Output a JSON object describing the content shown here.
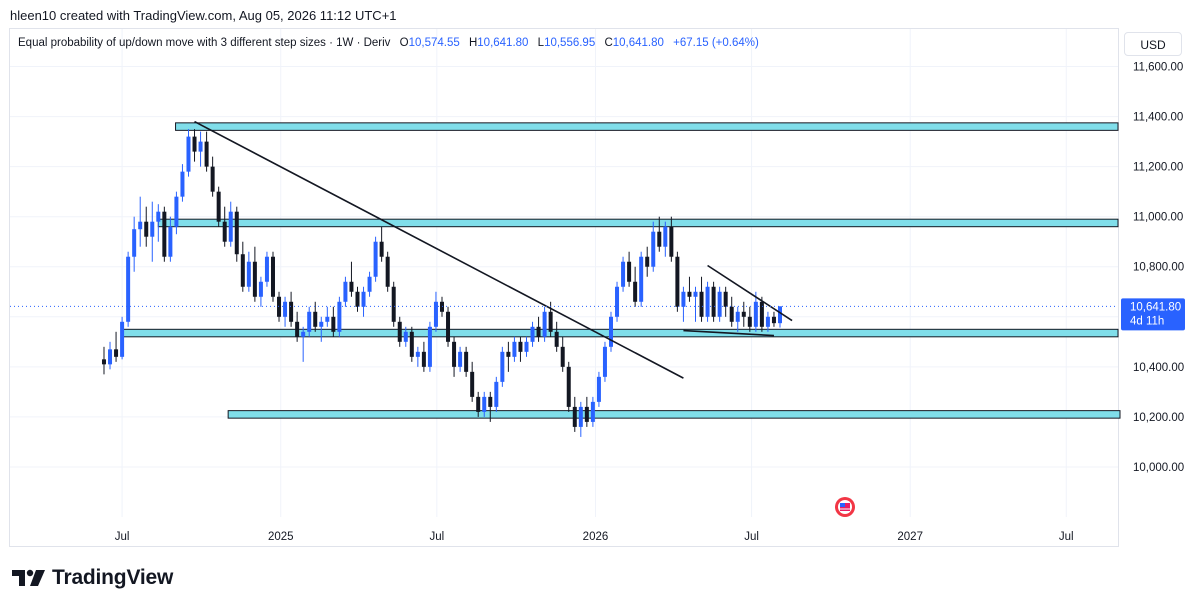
{
  "header": {
    "text": "hleen10 created with TradingView.com, Aug 05, 2026 11:12 UTC+1"
  },
  "legend": {
    "title": "Equal probability of up/down move with 3 different step sizes · 1W · Deriv",
    "open_label": "O",
    "open": "10,574.55",
    "high_label": "H",
    "high": "10,641.80",
    "low_label": "L",
    "low": "10,556.95",
    "close_label": "C",
    "close": "10,641.80",
    "change": "+67.15 (+0.64%)"
  },
  "currency": "USD",
  "price_badge": {
    "price": "10,641.80",
    "countdown": "4d 11h"
  },
  "brand": {
    "name": "TradingView",
    "logo_icon": "tradingview-logo-icon"
  },
  "colors": {
    "up": "#2962ff",
    "down": "#131722",
    "zone_fill": "#80deea",
    "accent": "#2962ff"
  },
  "chart_data": {
    "type": "candlestick",
    "title": "Equal probability of up/down move with 3 different step sizes",
    "interval": "1W",
    "ylim": [
      9800,
      11750
    ],
    "y_ticks": [
      "11,600.00",
      "11,400.00",
      "11,200.00",
      "11,000.00",
      "10,800.00",
      "10,400.00",
      "10,200.00",
      "10,000.00"
    ],
    "y_tick_values": [
      11600,
      11400,
      11200,
      11000,
      10800,
      10400,
      10200,
      10000
    ],
    "x_tick_labels": [
      "Jul",
      "2025",
      "Jul",
      "2026",
      "Jul",
      "2027",
      "Jul"
    ],
    "x_tick_dates": [
      "2024-07-01",
      "2025-01-01",
      "2025-07-01",
      "2026-01-01",
      "2026-07-01",
      "2027-01-01",
      "2027-07-01"
    ],
    "x_range": [
      "2024-02-22",
      "2027-08-30"
    ],
    "last_price": 10641.8,
    "candles": [
      {
        "t": "2024-06-10",
        "o": 10430,
        "h": 10480,
        "l": 10370,
        "c": 10410
      },
      {
        "t": "2024-06-17",
        "o": 10410,
        "h": 10500,
        "l": 10390,
        "c": 10470
      },
      {
        "t": "2024-06-24",
        "o": 10470,
        "h": 10540,
        "l": 10420,
        "c": 10440
      },
      {
        "t": "2024-07-01",
        "o": 10440,
        "h": 10600,
        "l": 10430,
        "c": 10580
      },
      {
        "t": "2024-07-08",
        "o": 10580,
        "h": 10860,
        "l": 10560,
        "c": 10840
      },
      {
        "t": "2024-07-15",
        "o": 10840,
        "h": 11000,
        "l": 10780,
        "c": 10950
      },
      {
        "t": "2024-07-22",
        "o": 10950,
        "h": 11080,
        "l": 10880,
        "c": 10980
      },
      {
        "t": "2024-07-29",
        "o": 10980,
        "h": 11040,
        "l": 10880,
        "c": 10920
      },
      {
        "t": "2024-08-05",
        "o": 10920,
        "h": 11060,
        "l": 10820,
        "c": 10980
      },
      {
        "t": "2024-08-12",
        "o": 10980,
        "h": 11050,
        "l": 10900,
        "c": 11020
      },
      {
        "t": "2024-08-19",
        "o": 11020,
        "h": 11040,
        "l": 10820,
        "c": 10840
      },
      {
        "t": "2024-08-26",
        "o": 10840,
        "h": 11000,
        "l": 10820,
        "c": 10960
      },
      {
        "t": "2024-09-02",
        "o": 10960,
        "h": 11100,
        "l": 10930,
        "c": 11080
      },
      {
        "t": "2024-09-09",
        "o": 11080,
        "h": 11210,
        "l": 11060,
        "c": 11180
      },
      {
        "t": "2024-09-16",
        "o": 11180,
        "h": 11350,
        "l": 11160,
        "c": 11320
      },
      {
        "t": "2024-09-23",
        "o": 11320,
        "h": 11350,
        "l": 11220,
        "c": 11260
      },
      {
        "t": "2024-09-30",
        "o": 11260,
        "h": 11340,
        "l": 11200,
        "c": 11300
      },
      {
        "t": "2024-10-07",
        "o": 11300,
        "h": 11340,
        "l": 11180,
        "c": 11200
      },
      {
        "t": "2024-10-14",
        "o": 11200,
        "h": 11240,
        "l": 11080,
        "c": 11100
      },
      {
        "t": "2024-10-21",
        "o": 11100,
        "h": 11120,
        "l": 10960,
        "c": 10980
      },
      {
        "t": "2024-10-28",
        "o": 10980,
        "h": 11040,
        "l": 10880,
        "c": 10900
      },
      {
        "t": "2024-11-04",
        "o": 10900,
        "h": 11060,
        "l": 10880,
        "c": 11020
      },
      {
        "t": "2024-11-11",
        "o": 11020,
        "h": 11040,
        "l": 10820,
        "c": 10850
      },
      {
        "t": "2024-11-18",
        "o": 10850,
        "h": 10900,
        "l": 10700,
        "c": 10720
      },
      {
        "t": "2024-11-25",
        "o": 10720,
        "h": 10860,
        "l": 10700,
        "c": 10820
      },
      {
        "t": "2024-12-02",
        "o": 10820,
        "h": 10880,
        "l": 10660,
        "c": 10680
      },
      {
        "t": "2024-12-09",
        "o": 10680,
        "h": 10760,
        "l": 10640,
        "c": 10740
      },
      {
        "t": "2024-12-16",
        "o": 10740,
        "h": 10860,
        "l": 10720,
        "c": 10840
      },
      {
        "t": "2024-12-23",
        "o": 10840,
        "h": 10860,
        "l": 10660,
        "c": 10680
      },
      {
        "t": "2024-12-30",
        "o": 10680,
        "h": 10700,
        "l": 10580,
        "c": 10600
      },
      {
        "t": "2025-01-06",
        "o": 10600,
        "h": 10680,
        "l": 10560,
        "c": 10660
      },
      {
        "t": "2025-01-13",
        "o": 10660,
        "h": 10700,
        "l": 10560,
        "c": 10580
      },
      {
        "t": "2025-01-20",
        "o": 10580,
        "h": 10620,
        "l": 10500,
        "c": 10520
      },
      {
        "t": "2025-01-27",
        "o": 10520,
        "h": 10560,
        "l": 10420,
        "c": 10540
      },
      {
        "t": "2025-02-03",
        "o": 10540,
        "h": 10640,
        "l": 10520,
        "c": 10620
      },
      {
        "t": "2025-02-10",
        "o": 10620,
        "h": 10660,
        "l": 10540,
        "c": 10560
      },
      {
        "t": "2025-02-17",
        "o": 10560,
        "h": 10600,
        "l": 10500,
        "c": 10580
      },
      {
        "t": "2025-02-24",
        "o": 10580,
        "h": 10640,
        "l": 10560,
        "c": 10600
      },
      {
        "t": "2025-03-03",
        "o": 10600,
        "h": 10640,
        "l": 10520,
        "c": 10540
      },
      {
        "t": "2025-03-10",
        "o": 10540,
        "h": 10680,
        "l": 10520,
        "c": 10660
      },
      {
        "t": "2025-03-17",
        "o": 10660,
        "h": 10760,
        "l": 10640,
        "c": 10740
      },
      {
        "t": "2025-03-24",
        "o": 10740,
        "h": 10820,
        "l": 10680,
        "c": 10700
      },
      {
        "t": "2025-03-31",
        "o": 10700,
        "h": 10720,
        "l": 10620,
        "c": 10640
      },
      {
        "t": "2025-04-07",
        "o": 10640,
        "h": 10720,
        "l": 10600,
        "c": 10700
      },
      {
        "t": "2025-04-14",
        "o": 10700,
        "h": 10780,
        "l": 10680,
        "c": 10760
      },
      {
        "t": "2025-04-21",
        "o": 10760,
        "h": 10920,
        "l": 10740,
        "c": 10900
      },
      {
        "t": "2025-04-28",
        "o": 10900,
        "h": 10960,
        "l": 10820,
        "c": 10840
      },
      {
        "t": "2025-05-05",
        "o": 10840,
        "h": 10860,
        "l": 10700,
        "c": 10720
      },
      {
        "t": "2025-05-12",
        "o": 10720,
        "h": 10740,
        "l": 10560,
        "c": 10580
      },
      {
        "t": "2025-05-19",
        "o": 10580,
        "h": 10600,
        "l": 10480,
        "c": 10500
      },
      {
        "t": "2025-05-26",
        "o": 10500,
        "h": 10560,
        "l": 10480,
        "c": 10540
      },
      {
        "t": "2025-06-02",
        "o": 10540,
        "h": 10560,
        "l": 10420,
        "c": 10440
      },
      {
        "t": "2025-06-09",
        "o": 10440,
        "h": 10480,
        "l": 10400,
        "c": 10460
      },
      {
        "t": "2025-06-16",
        "o": 10460,
        "h": 10500,
        "l": 10380,
        "c": 10400
      },
      {
        "t": "2025-06-23",
        "o": 10400,
        "h": 10580,
        "l": 10380,
        "c": 10560
      },
      {
        "t": "2025-06-30",
        "o": 10560,
        "h": 10700,
        "l": 10540,
        "c": 10660
      },
      {
        "t": "2025-07-07",
        "o": 10660,
        "h": 10680,
        "l": 10600,
        "c": 10620
      },
      {
        "t": "2025-07-14",
        "o": 10620,
        "h": 10640,
        "l": 10480,
        "c": 10500
      },
      {
        "t": "2025-07-21",
        "o": 10500,
        "h": 10520,
        "l": 10360,
        "c": 10400
      },
      {
        "t": "2025-07-28",
        "o": 10400,
        "h": 10480,
        "l": 10380,
        "c": 10460
      },
      {
        "t": "2025-08-04",
        "o": 10460,
        "h": 10480,
        "l": 10360,
        "c": 10380
      },
      {
        "t": "2025-08-11",
        "o": 10380,
        "h": 10420,
        "l": 10260,
        "c": 10280
      },
      {
        "t": "2025-08-18",
        "o": 10280,
        "h": 10300,
        "l": 10200,
        "c": 10220
      },
      {
        "t": "2025-08-25",
        "o": 10220,
        "h": 10300,
        "l": 10200,
        "c": 10280
      },
      {
        "t": "2025-09-01",
        "o": 10280,
        "h": 10300,
        "l": 10180,
        "c": 10240
      },
      {
        "t": "2025-09-08",
        "o": 10240,
        "h": 10360,
        "l": 10220,
        "c": 10340
      },
      {
        "t": "2025-09-15",
        "o": 10340,
        "h": 10480,
        "l": 10320,
        "c": 10460
      },
      {
        "t": "2025-09-22",
        "o": 10460,
        "h": 10500,
        "l": 10380,
        "c": 10440
      },
      {
        "t": "2025-09-29",
        "o": 10440,
        "h": 10520,
        "l": 10420,
        "c": 10500
      },
      {
        "t": "2025-10-06",
        "o": 10500,
        "h": 10520,
        "l": 10420,
        "c": 10460
      },
      {
        "t": "2025-10-13",
        "o": 10460,
        "h": 10520,
        "l": 10440,
        "c": 10500
      },
      {
        "t": "2025-10-20",
        "o": 10500,
        "h": 10580,
        "l": 10480,
        "c": 10560
      },
      {
        "t": "2025-10-27",
        "o": 10560,
        "h": 10600,
        "l": 10500,
        "c": 10520
      },
      {
        "t": "2025-11-03",
        "o": 10520,
        "h": 10640,
        "l": 10500,
        "c": 10620
      },
      {
        "t": "2025-11-10",
        "o": 10620,
        "h": 10660,
        "l": 10520,
        "c": 10540
      },
      {
        "t": "2025-11-17",
        "o": 10540,
        "h": 10580,
        "l": 10460,
        "c": 10480
      },
      {
        "t": "2025-11-24",
        "o": 10480,
        "h": 10520,
        "l": 10380,
        "c": 10400
      },
      {
        "t": "2025-12-01",
        "o": 10400,
        "h": 10420,
        "l": 10220,
        "c": 10240
      },
      {
        "t": "2025-12-08",
        "o": 10240,
        "h": 10280,
        "l": 10140,
        "c": 10160
      },
      {
        "t": "2025-12-15",
        "o": 10160,
        "h": 10260,
        "l": 10120,
        "c": 10240
      },
      {
        "t": "2025-12-22",
        "o": 10240,
        "h": 10280,
        "l": 10160,
        "c": 10180
      },
      {
        "t": "2025-12-29",
        "o": 10180,
        "h": 10280,
        "l": 10160,
        "c": 10260
      },
      {
        "t": "2026-01-05",
        "o": 10260,
        "h": 10380,
        "l": 10240,
        "c": 10360
      },
      {
        "t": "2026-01-12",
        "o": 10360,
        "h": 10500,
        "l": 10340,
        "c": 10480
      },
      {
        "t": "2026-01-19",
        "o": 10480,
        "h": 10620,
        "l": 10460,
        "c": 10600
      },
      {
        "t": "2026-01-26",
        "o": 10600,
        "h": 10740,
        "l": 10580,
        "c": 10720
      },
      {
        "t": "2026-02-02",
        "o": 10720,
        "h": 10840,
        "l": 10700,
        "c": 10820
      },
      {
        "t": "2026-02-09",
        "o": 10820,
        "h": 10860,
        "l": 10720,
        "c": 10740
      },
      {
        "t": "2026-02-16",
        "o": 10740,
        "h": 10800,
        "l": 10640,
        "c": 10660
      },
      {
        "t": "2026-02-23",
        "o": 10660,
        "h": 10860,
        "l": 10640,
        "c": 10840
      },
      {
        "t": "2026-03-02",
        "o": 10840,
        "h": 10880,
        "l": 10760,
        "c": 10800
      },
      {
        "t": "2026-03-09",
        "o": 10800,
        "h": 10980,
        "l": 10780,
        "c": 10940
      },
      {
        "t": "2026-03-16",
        "o": 10940,
        "h": 11000,
        "l": 10860,
        "c": 10880
      },
      {
        "t": "2026-03-23",
        "o": 10880,
        "h": 10980,
        "l": 10840,
        "c": 10960
      },
      {
        "t": "2026-03-30",
        "o": 10960,
        "h": 11000,
        "l": 10820,
        "c": 10840
      },
      {
        "t": "2026-04-06",
        "o": 10840,
        "h": 10860,
        "l": 10620,
        "c": 10640
      },
      {
        "t": "2026-04-13",
        "o": 10640,
        "h": 10720,
        "l": 10580,
        "c": 10700
      },
      {
        "t": "2026-04-20",
        "o": 10700,
        "h": 10760,
        "l": 10660,
        "c": 10680
      },
      {
        "t": "2026-04-27",
        "o": 10680,
        "h": 10720,
        "l": 10580,
        "c": 10700
      },
      {
        "t": "2026-05-04",
        "o": 10700,
        "h": 10760,
        "l": 10580,
        "c": 10600
      },
      {
        "t": "2026-05-11",
        "o": 10600,
        "h": 10740,
        "l": 10580,
        "c": 10720
      },
      {
        "t": "2026-05-18",
        "o": 10720,
        "h": 10740,
        "l": 10580,
        "c": 10600
      },
      {
        "t": "2026-05-25",
        "o": 10600,
        "h": 10720,
        "l": 10580,
        "c": 10700
      },
      {
        "t": "2026-06-01",
        "o": 10700,
        "h": 10720,
        "l": 10600,
        "c": 10640
      },
      {
        "t": "2026-06-08",
        "o": 10640,
        "h": 10680,
        "l": 10560,
        "c": 10580
      },
      {
        "t": "2026-06-15",
        "o": 10580,
        "h": 10640,
        "l": 10540,
        "c": 10620
      },
      {
        "t": "2026-06-22",
        "o": 10620,
        "h": 10660,
        "l": 10560,
        "c": 10600
      },
      {
        "t": "2026-06-29",
        "o": 10600,
        "h": 10640,
        "l": 10540,
        "c": 10560
      },
      {
        "t": "2026-07-06",
        "o": 10560,
        "h": 10700,
        "l": 10540,
        "c": 10660
      },
      {
        "t": "2026-07-13",
        "o": 10660,
        "h": 10680,
        "l": 10540,
        "c": 10560
      },
      {
        "t": "2026-07-20",
        "o": 10560,
        "h": 10620,
        "l": 10540,
        "c": 10600
      },
      {
        "t": "2026-07-27",
        "o": 10600,
        "h": 10620,
        "l": 10560,
        "c": 10574.55
      },
      {
        "t": "2026-08-03",
        "o": 10574.55,
        "h": 10641.8,
        "l": 10556.95,
        "c": 10641.8
      }
    ],
    "zones": [
      {
        "from": "2024-09-01",
        "to": "2027-08-30",
        "low": 11345,
        "high": 11375
      },
      {
        "from": "2024-08-12",
        "to": "2027-08-30",
        "low": 10960,
        "high": 10990
      },
      {
        "from": "2024-07-01",
        "to": "2027-08-30",
        "low": 10520,
        "high": 10550
      },
      {
        "from": "2024-11-01",
        "to": "2027-09-20",
        "low": 10195,
        "high": 10225
      }
    ],
    "trendlines": [
      {
        "from": [
          "2024-09-23",
          11380
        ],
        "to": [
          "2026-04-13",
          10355
        ]
      },
      {
        "from": [
          "2026-04-13",
          10545
        ],
        "to": [
          "2026-07-27",
          10525
        ]
      },
      {
        "from": [
          "2026-05-11",
          10805
        ],
        "to": [
          "2026-08-17",
          10585
        ]
      }
    ]
  }
}
